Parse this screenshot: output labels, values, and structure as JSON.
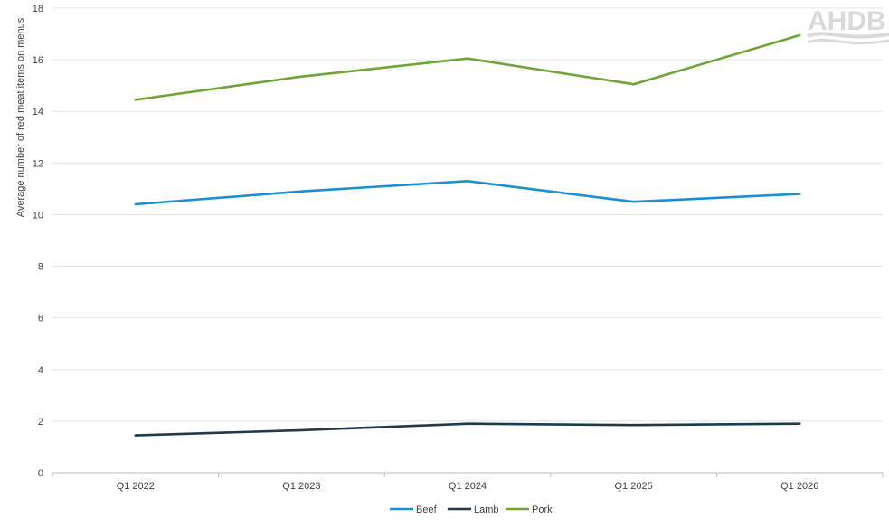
{
  "chart_data": {
    "type": "line",
    "title": "",
    "xlabel": "",
    "ylabel": "Average number of red meat items on menus",
    "categories": [
      "Q1 2022",
      "Q1 2023",
      "Q1 2024",
      "Q1 2025",
      "Q1 2026"
    ],
    "ylim": [
      0,
      18
    ],
    "yticks": [
      0,
      2,
      4,
      6,
      8,
      10,
      12,
      14,
      16,
      18
    ],
    "grid": true,
    "legend_position": "bottom",
    "series": [
      {
        "name": "Beef",
        "color": "#1a8fd1",
        "values": [
          10.4,
          10.9,
          11.3,
          10.5,
          10.8
        ]
      },
      {
        "name": "Lamb",
        "color": "#1f3a4a",
        "values": [
          1.45,
          1.65,
          1.9,
          1.85,
          1.9
        ]
      },
      {
        "name": "Pork",
        "color": "#6ea535",
        "values": [
          14.45,
          15.35,
          16.05,
          15.05,
          16.95
        ]
      }
    ]
  },
  "logo": {
    "text": "AHDB"
  }
}
